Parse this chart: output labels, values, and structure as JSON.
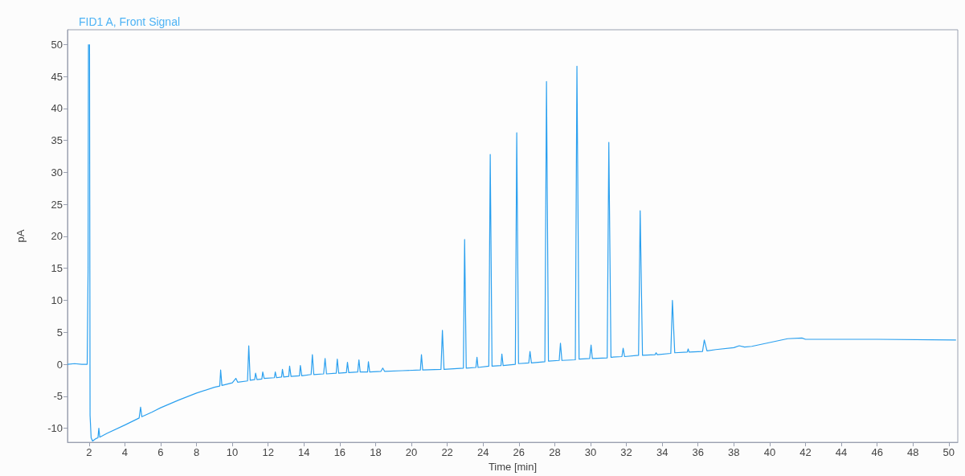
{
  "chart_data": {
    "type": "line",
    "title": "FID1 A, Front Signal",
    "xlabel": "Time [min]",
    "ylabel": "pA",
    "xlim": [
      0.8,
      50.5
    ],
    "ylim": [
      -12.2,
      52.3
    ],
    "xticks": [
      2,
      4,
      6,
      8,
      10,
      12,
      14,
      16,
      18,
      20,
      22,
      24,
      26,
      28,
      30,
      32,
      34,
      36,
      38,
      40,
      42,
      44,
      46,
      48,
      50
    ],
    "yticks": [
      -10,
      -5,
      0,
      5,
      10,
      15,
      20,
      25,
      30,
      35,
      40,
      45,
      50
    ],
    "marker": "none",
    "color": "#2ba0ef",
    "x": [
      0.8,
      1.2,
      1.6,
      1.9,
      1.95,
      1.97,
      2.0,
      2.03,
      2.06,
      2.12,
      2.2,
      2.4,
      2.5,
      2.55,
      2.6,
      3,
      4,
      4.8,
      4.88,
      4.95,
      5.5,
      6,
      7,
      8,
      9,
      9.3,
      9.35,
      9.42,
      10,
      10.2,
      10.3,
      10.85,
      10.92,
      11.0,
      11.25,
      11.3,
      11.38,
      11.65,
      11.7,
      11.78,
      12.35,
      12.4,
      12.47,
      12.75,
      12.8,
      12.87,
      13.15,
      13.2,
      13.28,
      13.75,
      13.8,
      13.88,
      14.4,
      14.47,
      14.55,
      15.1,
      15.18,
      15.26,
      15.8,
      15.86,
      15.94,
      16.37,
      16.43,
      16.5,
      17.0,
      17.07,
      17.14,
      17.55,
      17.6,
      17.67,
      18.3,
      18.4,
      18.5,
      19.5,
      20.5,
      20.56,
      20.63,
      21.65,
      21.73,
      21.82,
      22.9,
      22.97,
      23.06,
      23.6,
      23.66,
      23.72,
      24.32,
      24.4,
      24.5,
      25.0,
      25.05,
      25.12,
      25.8,
      25.88,
      25.98,
      26.55,
      26.62,
      26.7,
      27.45,
      27.54,
      27.65,
      28.25,
      28.32,
      28.4,
      29.15,
      29.24,
      29.36,
      29.95,
      30.03,
      30.1,
      30.93,
      31.02,
      31.14,
      31.75,
      31.82,
      31.9,
      32.68,
      32.77,
      32.9,
      33.6,
      33.66,
      33.73,
      34.48,
      34.57,
      34.7,
      35.4,
      35.45,
      35.5,
      36.25,
      36.35,
      36.5,
      37,
      38,
      38.3,
      38.6,
      39,
      40,
      41,
      41.8,
      42,
      46,
      50.4
    ],
    "values": [
      0,
      0.1,
      0,
      0,
      15,
      50,
      null,
      50,
      -8,
      -11.5,
      -12,
      -11.6,
      -11.5,
      -10,
      -11.4,
      -10.8,
      -9.5,
      -8.4,
      -6.7,
      -8.2,
      -7.5,
      -6.8,
      -5.6,
      -4.5,
      -3.6,
      -3.4,
      -0.9,
      -3.3,
      -2.9,
      -2.2,
      -2.8,
      -2.6,
      2.9,
      -2.5,
      -2.4,
      -1.4,
      -2.4,
      -2.3,
      -1.2,
      -2.2,
      -2.1,
      -1.2,
      -2.1,
      -2.0,
      -0.8,
      -2.0,
      -1.9,
      -0.3,
      -1.9,
      -1.8,
      -0.2,
      -1.8,
      -1.6,
      1.5,
      -1.6,
      -1.5,
      0.9,
      -1.5,
      -1.4,
      0.8,
      -1.4,
      -1.3,
      0.3,
      -1.3,
      -1.2,
      0.7,
      -1.2,
      -1.2,
      0.4,
      -1.2,
      -1.1,
      -0.6,
      -1.1,
      -1.0,
      -0.9,
      1.5,
      -0.9,
      -0.8,
      5.3,
      -0.8,
      -0.6,
      19.5,
      -0.6,
      -0.5,
      1.1,
      -0.5,
      -0.3,
      32.8,
      -0.3,
      -0.2,
      1.6,
      -0.2,
      0,
      36.2,
      0.1,
      0.2,
      2.0,
      0.2,
      0.4,
      44.2,
      0.5,
      0.6,
      3.3,
      0.6,
      0.7,
      46.6,
      0.8,
      0.9,
      3.0,
      0.9,
      1.0,
      34.7,
      1.1,
      1.2,
      2.5,
      1.2,
      1.4,
      24.0,
      1.4,
      1.5,
      1.8,
      1.5,
      1.7,
      10.0,
      1.8,
      1.9,
      2.4,
      1.9,
      2.0,
      3.8,
      2.1,
      2.3,
      2.6,
      2.9,
      2.7,
      2.8,
      3.4,
      4.0,
      4.1,
      3.9,
      3.9,
      3.8
    ]
  }
}
